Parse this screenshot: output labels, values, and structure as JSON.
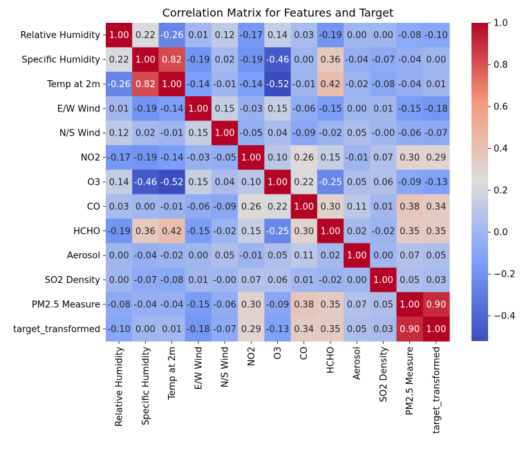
{
  "chart_data": {
    "type": "heatmap",
    "title": "Correlation Matrix for Features and Target",
    "xlabel": "",
    "ylabel": "",
    "labels": [
      "Relative Humidity",
      "Specific Humidity",
      "Temp at 2m",
      "E/W Wind",
      "N/S Wind",
      "NO2",
      "O3",
      "CO",
      "HCHO",
      "Aerosol",
      "SO2 Density",
      "PM2.5 Measure",
      "target_transformed"
    ],
    "cell_labels": [
      [
        "1.00",
        "0.22",
        "-0.26",
        "0.01",
        "0.12",
        "-0.17",
        "0.14",
        "0.03",
        "-0.19",
        "0.00",
        "0.00",
        "-0.08",
        "-0.10"
      ],
      [
        "0.22",
        "1.00",
        "0.82",
        "-0.19",
        "0.02",
        "-0.19",
        "-0.46",
        "0.00",
        "0.36",
        "-0.04",
        "-0.07",
        "-0.04",
        "0.00"
      ],
      [
        "-0.26",
        "0.82",
        "1.00",
        "-0.14",
        "-0.01",
        "-0.14",
        "-0.52",
        "-0.01",
        "0.42",
        "-0.02",
        "-0.08",
        "-0.04",
        "0.01"
      ],
      [
        "0.01",
        "-0.19",
        "-0.14",
        "1.00",
        "0.15",
        "-0.03",
        "0.15",
        "-0.06",
        "-0.15",
        "0.00",
        "0.01",
        "-0.15",
        "-0.18"
      ],
      [
        "0.12",
        "0.02",
        "-0.01",
        "0.15",
        "1.00",
        "-0.05",
        "0.04",
        "-0.09",
        "-0.02",
        "0.05",
        "-0.00",
        "-0.06",
        "-0.07"
      ],
      [
        "-0.17",
        "-0.19",
        "-0.14",
        "-0.03",
        "-0.05",
        "1.00",
        "0.10",
        "0.26",
        "0.15",
        "-0.01",
        "0.07",
        "0.30",
        "0.29"
      ],
      [
        "0.14",
        "-0.46",
        "-0.52",
        "0.15",
        "0.04",
        "0.10",
        "1.00",
        "0.22",
        "-0.25",
        "0.05",
        "0.06",
        "-0.09",
        "-0.13"
      ],
      [
        "0.03",
        "0.00",
        "-0.01",
        "-0.06",
        "-0.09",
        "0.26",
        "0.22",
        "1.00",
        "0.30",
        "0.11",
        "0.01",
        "0.38",
        "0.34"
      ],
      [
        "-0.19",
        "0.36",
        "0.42",
        "-0.15",
        "-0.02",
        "0.15",
        "-0.25",
        "0.30",
        "1.00",
        "0.02",
        "-0.02",
        "0.35",
        "0.35"
      ],
      [
        "0.00",
        "-0.04",
        "-0.02",
        "0.00",
        "0.05",
        "-0.01",
        "0.05",
        "0.11",
        "0.02",
        "1.00",
        "0.00",
        "0.07",
        "0.05"
      ],
      [
        "0.00",
        "-0.07",
        "-0.08",
        "0.01",
        "-0.00",
        "0.07",
        "0.06",
        "0.01",
        "-0.02",
        "0.00",
        "1.00",
        "0.05",
        "0.03"
      ],
      [
        "-0.08",
        "-0.04",
        "-0.04",
        "-0.15",
        "-0.06",
        "0.30",
        "-0.09",
        "0.38",
        "0.35",
        "0.07",
        "0.05",
        "1.00",
        "0.90"
      ],
      [
        "-0.10",
        "0.00",
        "0.01",
        "-0.18",
        "-0.07",
        "0.29",
        "-0.13",
        "0.34",
        "0.35",
        "0.05",
        "0.03",
        "0.90",
        "1.00"
      ]
    ],
    "colormap": "coolwarm",
    "vmin": -0.52,
    "vmax": 1.0,
    "colorbar_ticks": [
      "1.0",
      "0.8",
      "0.6",
      "0.4",
      "0.2",
      "0.0",
      "−0.2",
      "−0.4"
    ],
    "colorbar_tick_values": [
      1.0,
      0.8,
      0.6,
      0.4,
      0.2,
      0.0,
      -0.2,
      -0.4
    ]
  }
}
